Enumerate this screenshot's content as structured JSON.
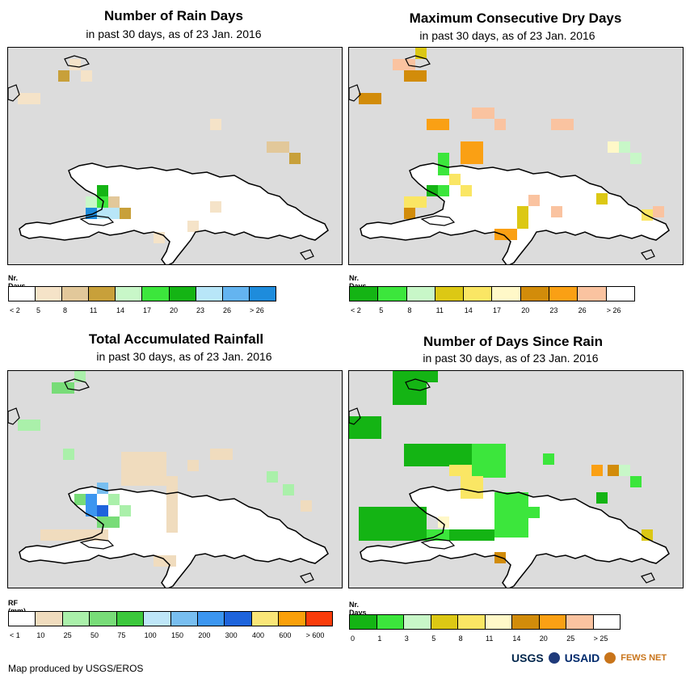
{
  "panels": [
    {
      "title": "Number of Rain Days",
      "subtitle": "in past 30 days, as of 23 Jan. 2016",
      "legend": {
        "title": "Nr. Days",
        "colors": [
          "#ffffff",
          "#f5e3c8",
          "#e2c89a",
          "#c8a03a",
          "#c8f7c8",
          "#3ce63c",
          "#14b414",
          "#b8e6f8",
          "#64b4f0",
          "#1e8cdc"
        ],
        "labels": [
          "< 2",
          "5",
          "8",
          "11",
          "14",
          "17",
          "20",
          "23",
          "26",
          "> 26"
        ]
      }
    },
    {
      "title": "Maximum Consecutive Dry Days",
      "subtitle": "in past 30 days, as of 23 Jan. 2016",
      "legend": {
        "title": "Nr. Days",
        "colors": [
          "#14b414",
          "#3ce63c",
          "#c8f7c8",
          "#dcc814",
          "#fae664",
          "#fff8c8",
          "#d28c0a",
          "#faa014",
          "#fac3a0",
          "#ffffff"
        ],
        "labels": [
          "< 2",
          "5",
          "8",
          "11",
          "14",
          "17",
          "20",
          "23",
          "26",
          "> 26"
        ]
      }
    },
    {
      "title": "Total Accumulated Rainfall",
      "subtitle": "in past 30 days, as of 23 Jan. 2016",
      "legend": {
        "title": "RF (mm)",
        "colors": [
          "#ffffff",
          "#f0dcbe",
          "#aaf0aa",
          "#78dc78",
          "#3cc83c",
          "#bee6f8",
          "#78bef0",
          "#3c96f0",
          "#1e64dc",
          "#fae678",
          "#faa00a",
          "#fa3c0a"
        ],
        "labels": [
          "< 1",
          "10",
          "25",
          "50",
          "75",
          "100",
          "150",
          "200",
          "300",
          "400",
          "600",
          "> 600"
        ]
      }
    },
    {
      "title": "Number of Days Since Rain",
      "subtitle": "in past 30 days, as of 23 Jan. 2016",
      "legend": {
        "title": "Nr. Days",
        "colors": [
          "#14b414",
          "#3ce63c",
          "#c8f7c8",
          "#dcc814",
          "#fae664",
          "#fff8c8",
          "#d28c0a",
          "#faa014",
          "#fac3a0",
          "#ffffff"
        ],
        "labels": [
          "0",
          "1",
          "3",
          "5",
          "8",
          "11",
          "14",
          "20",
          "25",
          "> 25"
        ]
      }
    }
  ],
  "footer": "Map produced by USGS/EROS",
  "logos": {
    "usgs": "USGS",
    "usaid": "USAID",
    "fews": "FEWS NET"
  }
}
